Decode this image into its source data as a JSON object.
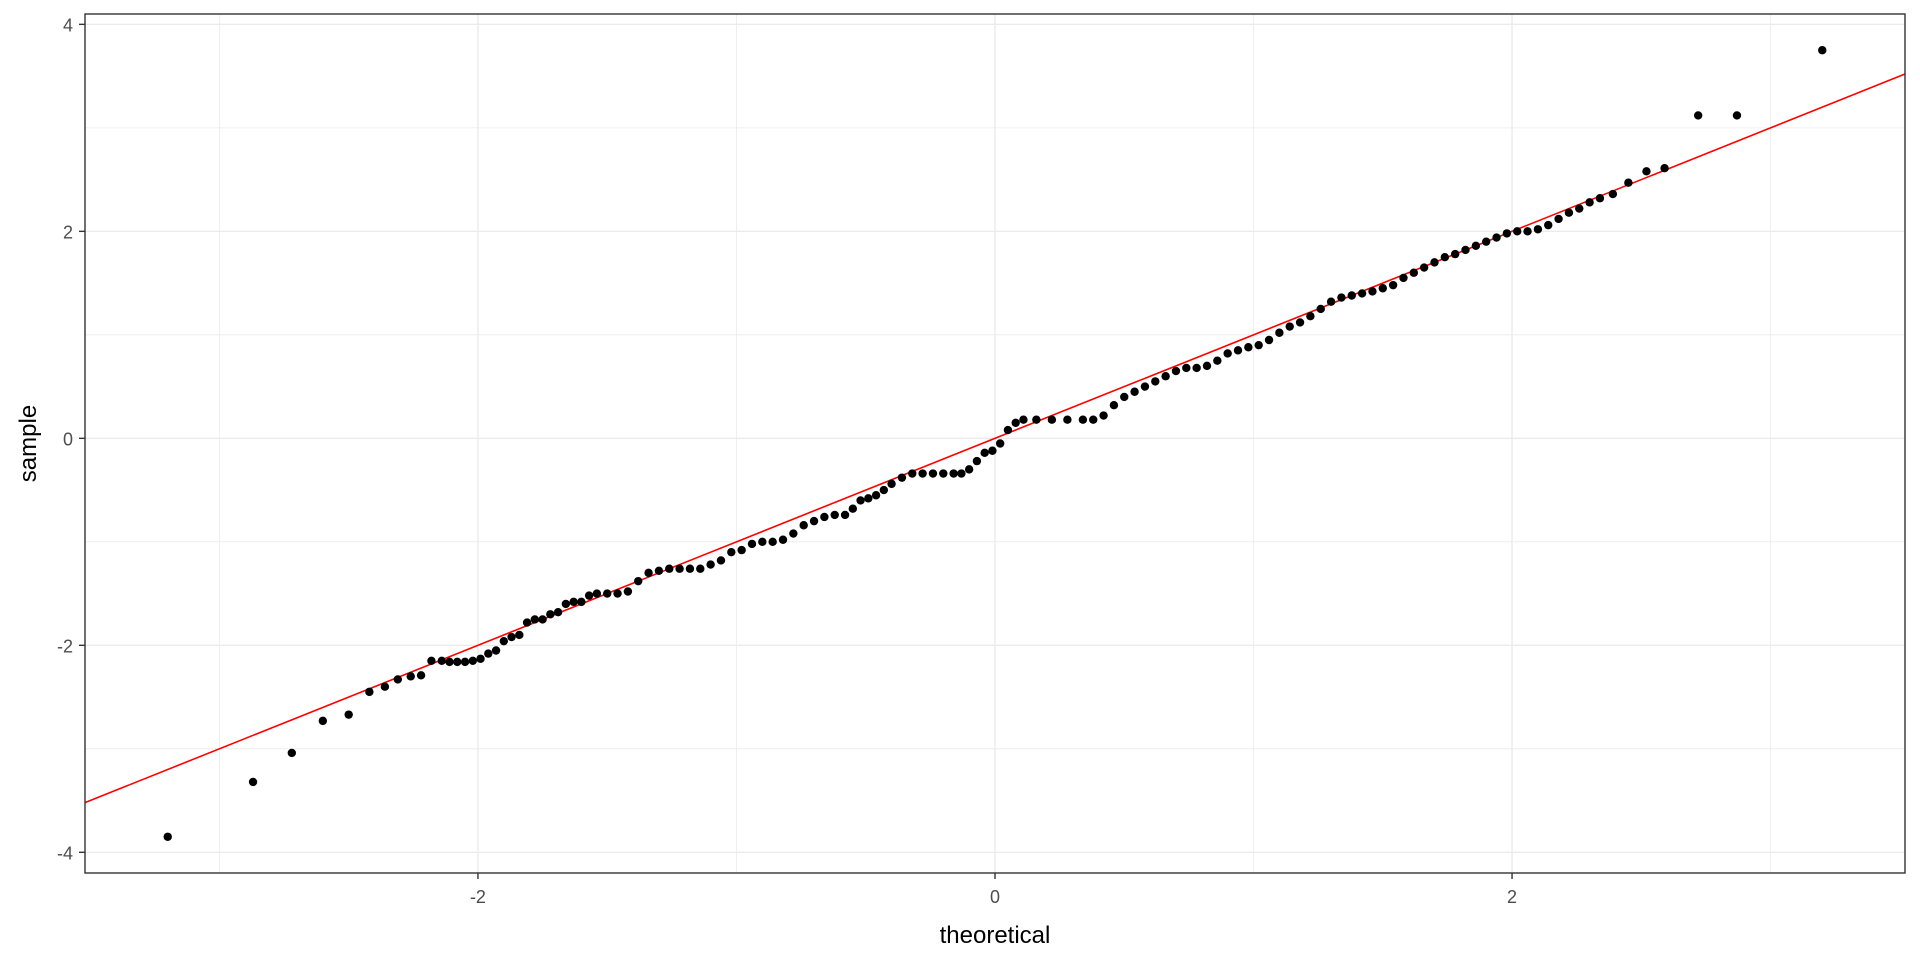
{
  "chart_data": {
    "type": "scatter",
    "xlabel": "theoretical",
    "ylabel": "sample",
    "xlim": [
      -3.52,
      3.52
    ],
    "ylim": [
      -4.2,
      4.1
    ],
    "x_ticks": [
      -2,
      0,
      2
    ],
    "y_ticks": [
      -4,
      -2,
      0,
      2,
      4
    ],
    "grid": true,
    "colors": {
      "points": "#000000",
      "reference_line": "#ff0000",
      "grid": "#ebebeb",
      "panel_border": "#333333"
    },
    "reference_line": {
      "slope": 1.0,
      "intercept": 0.0
    },
    "series": [
      {
        "values_qq": [
          [
            -3.2,
            -3.85
          ],
          [
            -2.87,
            -3.32
          ],
          [
            -2.72,
            -3.04
          ],
          [
            -2.6,
            -2.73
          ],
          [
            -2.5,
            -2.67
          ],
          [
            -2.42,
            -2.45
          ],
          [
            -2.36,
            -2.4
          ],
          [
            -2.31,
            -2.33
          ],
          [
            -2.26,
            -2.3
          ],
          [
            -2.22,
            -2.29
          ],
          [
            -2.18,
            -2.15
          ],
          [
            -2.14,
            -2.15
          ],
          [
            -2.11,
            -2.16
          ],
          [
            -2.08,
            -2.16
          ],
          [
            -2.05,
            -2.16
          ],
          [
            -2.02,
            -2.15
          ],
          [
            -1.99,
            -2.13
          ],
          [
            -1.96,
            -2.08
          ],
          [
            -1.93,
            -2.05
          ],
          [
            -1.9,
            -1.96
          ],
          [
            -1.87,
            -1.92
          ],
          [
            -1.84,
            -1.9
          ],
          [
            -1.81,
            -1.78
          ],
          [
            -1.78,
            -1.75
          ],
          [
            -1.75,
            -1.75
          ],
          [
            -1.72,
            -1.7
          ],
          [
            -1.69,
            -1.68
          ],
          [
            -1.66,
            -1.6
          ],
          [
            -1.63,
            -1.58
          ],
          [
            -1.6,
            -1.58
          ],
          [
            -1.57,
            -1.52
          ],
          [
            -1.54,
            -1.5
          ],
          [
            -1.5,
            -1.5
          ],
          [
            -1.46,
            -1.5
          ],
          [
            -1.42,
            -1.48
          ],
          [
            -1.38,
            -1.38
          ],
          [
            -1.34,
            -1.3
          ],
          [
            -1.3,
            -1.28
          ],
          [
            -1.26,
            -1.26
          ],
          [
            -1.22,
            -1.26
          ],
          [
            -1.18,
            -1.26
          ],
          [
            -1.14,
            -1.26
          ],
          [
            -1.1,
            -1.22
          ],
          [
            -1.06,
            -1.18
          ],
          [
            -1.02,
            -1.1
          ],
          [
            -0.98,
            -1.08
          ],
          [
            -0.94,
            -1.02
          ],
          [
            -0.9,
            -1.0
          ],
          [
            -0.86,
            -1.0
          ],
          [
            -0.82,
            -0.98
          ],
          [
            -0.78,
            -0.92
          ],
          [
            -0.74,
            -0.84
          ],
          [
            -0.7,
            -0.8
          ],
          [
            -0.66,
            -0.76
          ],
          [
            -0.62,
            -0.74
          ],
          [
            -0.58,
            -0.74
          ],
          [
            -0.55,
            -0.68
          ],
          [
            -0.52,
            -0.6
          ],
          [
            -0.49,
            -0.58
          ],
          [
            -0.46,
            -0.55
          ],
          [
            -0.43,
            -0.5
          ],
          [
            -0.4,
            -0.44
          ],
          [
            -0.36,
            -0.38
          ],
          [
            -0.32,
            -0.34
          ],
          [
            -0.28,
            -0.34
          ],
          [
            -0.24,
            -0.34
          ],
          [
            -0.2,
            -0.34
          ],
          [
            -0.16,
            -0.34
          ],
          [
            -0.13,
            -0.34
          ],
          [
            -0.1,
            -0.3
          ],
          [
            -0.07,
            -0.22
          ],
          [
            -0.04,
            -0.14
          ],
          [
            -0.01,
            -0.12
          ],
          [
            0.02,
            -0.05
          ],
          [
            0.05,
            0.08
          ],
          [
            0.08,
            0.15
          ],
          [
            0.11,
            0.18
          ],
          [
            0.16,
            0.18
          ],
          [
            0.22,
            0.18
          ],
          [
            0.28,
            0.18
          ],
          [
            0.34,
            0.18
          ],
          [
            0.38,
            0.18
          ],
          [
            0.42,
            0.22
          ],
          [
            0.46,
            0.32
          ],
          [
            0.5,
            0.4
          ],
          [
            0.54,
            0.45
          ],
          [
            0.58,
            0.5
          ],
          [
            0.62,
            0.55
          ],
          [
            0.66,
            0.6
          ],
          [
            0.7,
            0.65
          ],
          [
            0.74,
            0.68
          ],
          [
            0.78,
            0.68
          ],
          [
            0.82,
            0.7
          ],
          [
            0.86,
            0.75
          ],
          [
            0.9,
            0.82
          ],
          [
            0.94,
            0.85
          ],
          [
            0.98,
            0.88
          ],
          [
            1.02,
            0.9
          ],
          [
            1.06,
            0.95
          ],
          [
            1.1,
            1.02
          ],
          [
            1.14,
            1.08
          ],
          [
            1.18,
            1.12
          ],
          [
            1.22,
            1.18
          ],
          [
            1.26,
            1.25
          ],
          [
            1.3,
            1.32
          ],
          [
            1.34,
            1.36
          ],
          [
            1.38,
            1.38
          ],
          [
            1.42,
            1.4
          ],
          [
            1.46,
            1.42
          ],
          [
            1.5,
            1.45
          ],
          [
            1.54,
            1.48
          ],
          [
            1.58,
            1.55
          ],
          [
            1.62,
            1.6
          ],
          [
            1.66,
            1.65
          ],
          [
            1.7,
            1.7
          ],
          [
            1.74,
            1.75
          ],
          [
            1.78,
            1.78
          ],
          [
            1.82,
            1.82
          ],
          [
            1.86,
            1.86
          ],
          [
            1.9,
            1.9
          ],
          [
            1.94,
            1.94
          ],
          [
            1.98,
            1.98
          ],
          [
            2.02,
            2.0
          ],
          [
            2.06,
            2.0
          ],
          [
            2.1,
            2.02
          ],
          [
            2.14,
            2.06
          ],
          [
            2.18,
            2.12
          ],
          [
            2.22,
            2.18
          ],
          [
            2.26,
            2.22
          ],
          [
            2.3,
            2.28
          ],
          [
            2.34,
            2.32
          ],
          [
            2.39,
            2.36
          ],
          [
            2.45,
            2.47
          ],
          [
            2.52,
            2.58
          ],
          [
            2.59,
            2.61
          ],
          [
            2.72,
            3.12
          ],
          [
            2.87,
            3.12
          ],
          [
            3.2,
            3.75
          ]
        ]
      }
    ]
  }
}
